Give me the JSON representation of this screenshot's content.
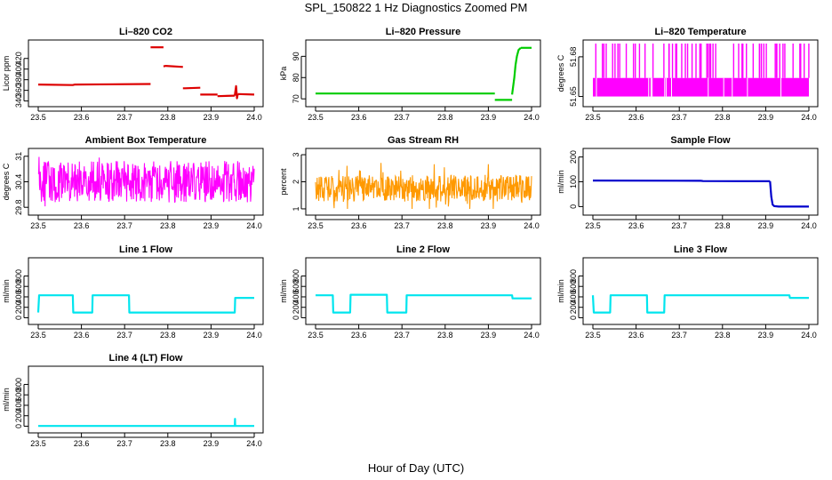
{
  "figure": {
    "title": "SPL_150822  1 Hz Diagnostics Zoomed PM",
    "xlabel": "Hour of Day (UTC)"
  },
  "chart_data": [
    {
      "type": "line",
      "title": "Li–820 CO2",
      "ylabel": "Licor ppm",
      "xlim": [
        23.5,
        24.0
      ],
      "xticks": [
        23.5,
        23.6,
        23.7,
        23.8,
        23.9,
        24.0
      ],
      "ylim": [
        336,
        448
      ],
      "yticks": [
        340,
        360,
        380,
        400,
        420
      ],
      "color": "#dd0000",
      "series": [
        {
          "segments": [
            {
              "x": [
                23.5,
                23.58,
                23.585,
                23.76
              ],
              "y": [
                371,
                370,
                371,
                372
              ]
            },
            {
              "x": [
                23.76,
                23.765,
                23.79
              ],
              "y": [
                441,
                441,
                441
              ]
            },
            {
              "x": [
                23.79,
                23.795,
                23.835
              ],
              "y": [
                405,
                406,
                404
              ]
            },
            {
              "x": [
                23.835,
                23.84,
                23.875
              ],
              "y": [
                364,
                364,
                365
              ]
            },
            {
              "x": [
                23.875,
                23.88,
                23.915
              ],
              "y": [
                352,
                352,
                352
              ]
            },
            {
              "x": [
                23.915,
                23.955
              ],
              "y": [
                349,
                350
              ]
            },
            {
              "x": [
                23.955,
                23.958,
                23.96,
                23.962
              ],
              "y": [
                350,
                368,
                345,
                353
              ]
            },
            {
              "x": [
                23.962,
                24.0
              ],
              "y": [
                353,
                352
              ]
            }
          ]
        }
      ]
    },
    {
      "type": "line",
      "title": "Li–820 Pressure",
      "ylabel": "kPa",
      "xlim": [
        23.5,
        24.0
      ],
      "xticks": [
        23.5,
        23.6,
        23.7,
        23.8,
        23.9,
        24.0
      ],
      "ylim": [
        68,
        96
      ],
      "yticks": [
        70,
        80,
        90
      ],
      "color": "#00cc00",
      "series": [
        {
          "segments": [
            {
              "x": [
                23.5,
                23.915
              ],
              "y": [
                72.5,
                72.5
              ]
            },
            {
              "x": [
                23.915,
                23.918,
                23.955
              ],
              "y": [
                69.5,
                69.5,
                69.5
              ]
            },
            {
              "x": [
                23.955,
                23.96,
                23.963,
                23.966,
                23.97,
                23.975
              ],
              "y": [
                72,
                80,
                86,
                90,
                93,
                94
              ]
            },
            {
              "x": [
                23.975,
                24.0
              ],
              "y": [
                94,
                94
              ]
            }
          ]
        }
      ]
    },
    {
      "type": "line",
      "title": "Li–820 Temperature",
      "ylabel": "degrees C",
      "xlim": [
        23.5,
        24.0
      ],
      "xticks": [
        23.5,
        23.6,
        23.7,
        23.8,
        23.9,
        24.0
      ],
      "ylim": [
        51.645,
        51.69
      ],
      "yticks": [
        51.65,
        51.68
      ],
      "color": "#ff00ff",
      "band": {
        "lo": 51.65,
        "hi": 51.664,
        "spike_max": 51.69,
        "spikes": 60
      }
    },
    {
      "type": "line",
      "title": "Ambient Box Temperature",
      "ylabel": "degrees C",
      "xlim": [
        23.5,
        24.0
      ],
      "xticks": [
        23.5,
        23.6,
        23.7,
        23.8,
        23.9,
        24.0
      ],
      "ylim": [
        29.7,
        31.1
      ],
      "yticks": [
        29.8,
        30.4,
        31.0
      ],
      "color": "#ff00ff",
      "noise": {
        "center": 30.4,
        "amp": 0.35,
        "min": 29.75,
        "max": 31.05,
        "density": 1.0
      }
    },
    {
      "type": "line",
      "title": "Gas Stream RH",
      "ylabel": "percent",
      "xlim": [
        23.5,
        24.0
      ],
      "xticks": [
        23.5,
        23.6,
        23.7,
        23.8,
        23.9,
        24.0
      ],
      "ylim": [
        0.9,
        3.1
      ],
      "yticks": [
        1.0,
        2.0,
        3.0
      ],
      "color": "#ff9900",
      "noise": {
        "center": 1.75,
        "amp": 0.35,
        "min": 1.0,
        "max": 3.0,
        "density": 0.8
      }
    },
    {
      "type": "line",
      "title": "Sample Flow",
      "ylabel": "ml/min",
      "xlim": [
        23.5,
        24.0
      ],
      "xticks": [
        23.5,
        23.6,
        23.7,
        23.8,
        23.9,
        24.0
      ],
      "ylim": [
        -20,
        220
      ],
      "yticks": [
        0,
        100,
        200
      ],
      "color": "#0000cc",
      "series": [
        {
          "segments": [
            {
              "x": [
                23.5,
                23.75,
                23.755,
                23.91
              ],
              "y": [
                105,
                104,
                103,
                102
              ]
            },
            {
              "x": [
                23.91,
                23.913,
                23.916,
                23.92,
                23.93,
                24.0
              ],
              "y": [
                102,
                40,
                8,
                2,
                0,
                0
              ]
            }
          ]
        }
      ]
    },
    {
      "type": "line",
      "title": "Line 1 Flow",
      "ylabel": "ml/min",
      "xlim": [
        23.5,
        24.0
      ],
      "xticks": [
        23.5,
        23.6,
        23.7,
        23.8,
        23.9,
        24.0
      ],
      "ylim": [
        -60,
        1080
      ],
      "yticks": [
        0,
        200,
        400,
        600,
        800
      ],
      "color": "#00e5ee",
      "series": [
        {
          "segments": [
            {
              "x": [
                23.5,
                23.502,
                23.58,
                23.581,
                23.625,
                23.626,
                23.71,
                23.711,
                23.955,
                23.956,
                24.0
              ],
              "y": [
                100,
                430,
                430,
                100,
                100,
                430,
                430,
                100,
                100,
                380,
                380
              ]
            }
          ]
        }
      ]
    },
    {
      "type": "line",
      "title": "Line 2 Flow",
      "ylabel": "ml/min",
      "xlim": [
        23.5,
        24.0
      ],
      "xticks": [
        23.5,
        23.6,
        23.7,
        23.8,
        23.9,
        24.0
      ],
      "ylim": [
        -60,
        1080
      ],
      "yticks": [
        0,
        200,
        400,
        600,
        800
      ],
      "color": "#00e5ee",
      "series": [
        {
          "segments": [
            {
              "x": [
                23.5,
                23.54,
                23.541,
                23.58,
                23.581,
                23.665,
                23.666,
                23.71,
                23.711,
                23.955,
                23.956,
                24.0
              ],
              "y": [
                430,
                430,
                100,
                100,
                440,
                440,
                100,
                100,
                430,
                430,
                370,
                370
              ]
            }
          ]
        }
      ]
    },
    {
      "type": "line",
      "title": "Line 3 Flow",
      "ylabel": "ml/min",
      "xlim": [
        23.5,
        24.0
      ],
      "xticks": [
        23.5,
        23.6,
        23.7,
        23.8,
        23.9,
        24.0
      ],
      "ylim": [
        -60,
        1080
      ],
      "yticks": [
        0,
        200,
        400,
        600,
        800
      ],
      "color": "#00e5ee",
      "series": [
        {
          "segments": [
            {
              "x": [
                23.5,
                23.502,
                23.54,
                23.541,
                23.625,
                23.626,
                23.665,
                23.666,
                23.955,
                23.956,
                24.0
              ],
              "y": [
                430,
                100,
                100,
                430,
                430,
                100,
                100,
                430,
                430,
                380,
                380
              ]
            }
          ]
        }
      ]
    },
    {
      "type": "line",
      "title": "Line 4 (LT) Flow",
      "ylabel": "ml/min",
      "xlim": [
        23.5,
        24.0
      ],
      "xticks": [
        23.5,
        23.6,
        23.7,
        23.8,
        23.9,
        24.0
      ],
      "ylim": [
        -60,
        1080
      ],
      "yticks": [
        0,
        200,
        400,
        600,
        800
      ],
      "color": "#00e5ee",
      "series": [
        {
          "segments": [
            {
              "x": [
                23.5,
                23.955,
                23.9555,
                23.956,
                23.957,
                24.0
              ],
              "y": [
                5,
                5,
                140,
                5,
                5,
                5
              ]
            }
          ]
        }
      ]
    }
  ]
}
